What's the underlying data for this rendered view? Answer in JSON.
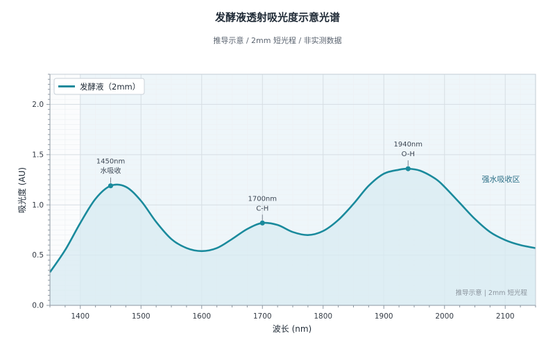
{
  "title": "发酵液透射吸光度示意光谱",
  "subtitle": "推导示意 / 2mm 短光程 / 非实测数据",
  "watermark": "推导示意 | 2mm 短光程",
  "colors": {
    "line": "#1a8a9c",
    "fill": "#d8ebf2",
    "region": "#eef6fa",
    "grid": "#d6dde3",
    "grid_minor": "#eef1f4",
    "axis": "#8b96a0",
    "peak": "#1a8a9c",
    "region_text": "#2c6f86"
  },
  "chart_data": {
    "type": "line",
    "xlabel": "波长 (nm)",
    "ylabel": "吸光度 (AU)",
    "xlim": [
      1350,
      2150
    ],
    "ylim": [
      0,
      2.3
    ],
    "xticks": [
      1400,
      1500,
      1600,
      1700,
      1800,
      1900,
      2000,
      2100
    ],
    "yticks": [
      0.0,
      0.5,
      1.0,
      1.5,
      2.0
    ],
    "grid": true,
    "legend_position": "top-left",
    "series": [
      {
        "name": "发酵液（2mm）",
        "x": [
          1350,
          1375,
          1400,
          1425,
          1450,
          1475,
          1500,
          1525,
          1550,
          1575,
          1600,
          1625,
          1650,
          1675,
          1700,
          1725,
          1750,
          1775,
          1800,
          1825,
          1850,
          1875,
          1900,
          1925,
          1940,
          1960,
          1985,
          2000,
          2025,
          2050,
          2075,
          2100,
          2125,
          2150
        ],
        "y": [
          0.33,
          0.55,
          0.82,
          1.06,
          1.19,
          1.18,
          1.04,
          0.83,
          0.66,
          0.57,
          0.54,
          0.57,
          0.66,
          0.76,
          0.82,
          0.8,
          0.73,
          0.7,
          0.74,
          0.85,
          1.01,
          1.19,
          1.31,
          1.35,
          1.36,
          1.34,
          1.26,
          1.18,
          1.02,
          0.86,
          0.73,
          0.65,
          0.6,
          0.57
        ]
      }
    ],
    "peaks": [
      {
        "x": 1450,
        "y": 1.19,
        "line1": "1450nm",
        "line2": "水吸收"
      },
      {
        "x": 1700,
        "y": 0.82,
        "line1": "1700nm",
        "line2": "C-H"
      },
      {
        "x": 1940,
        "y": 1.36,
        "line1": "1940nm",
        "line2": "O-H"
      }
    ],
    "shaded_region": {
      "x_from": 1400,
      "x_to": 2150,
      "label": "强水吸收区"
    }
  }
}
